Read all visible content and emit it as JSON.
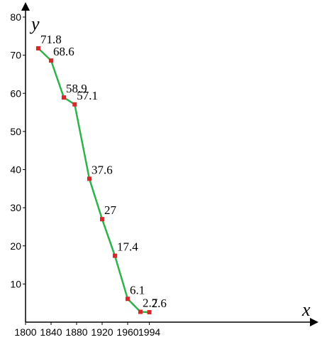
{
  "chart_data": {
    "type": "line",
    "xlabel": "x",
    "ylabel": "y",
    "x_ticks": [
      "1800",
      "1840",
      "1880",
      "1920",
      "1960",
      "1994"
    ],
    "y_ticks": [
      "10",
      "20",
      "30",
      "40",
      "50",
      "60",
      "70",
      "80"
    ],
    "xlim": [
      1800,
      2010
    ],
    "ylim": [
      0,
      80
    ],
    "grid": false,
    "series": [
      {
        "x": [
          1820,
          1840,
          1860,
          1877,
          1900,
          1920,
          1940,
          1960,
          1980,
          1994
        ],
        "y": [
          71.8,
          68.6,
          58.9,
          57.1,
          37.6,
          27,
          17.4,
          6.1,
          2.7,
          2.6
        ],
        "labels": [
          "71.8",
          "68.6",
          "58.9",
          "57.1",
          "37.6",
          "27",
          "17.4",
          "6.1",
          "2.7",
          "2.6"
        ],
        "line_color": "#2db34a",
        "marker_color": "#d62a2a"
      }
    ]
  }
}
